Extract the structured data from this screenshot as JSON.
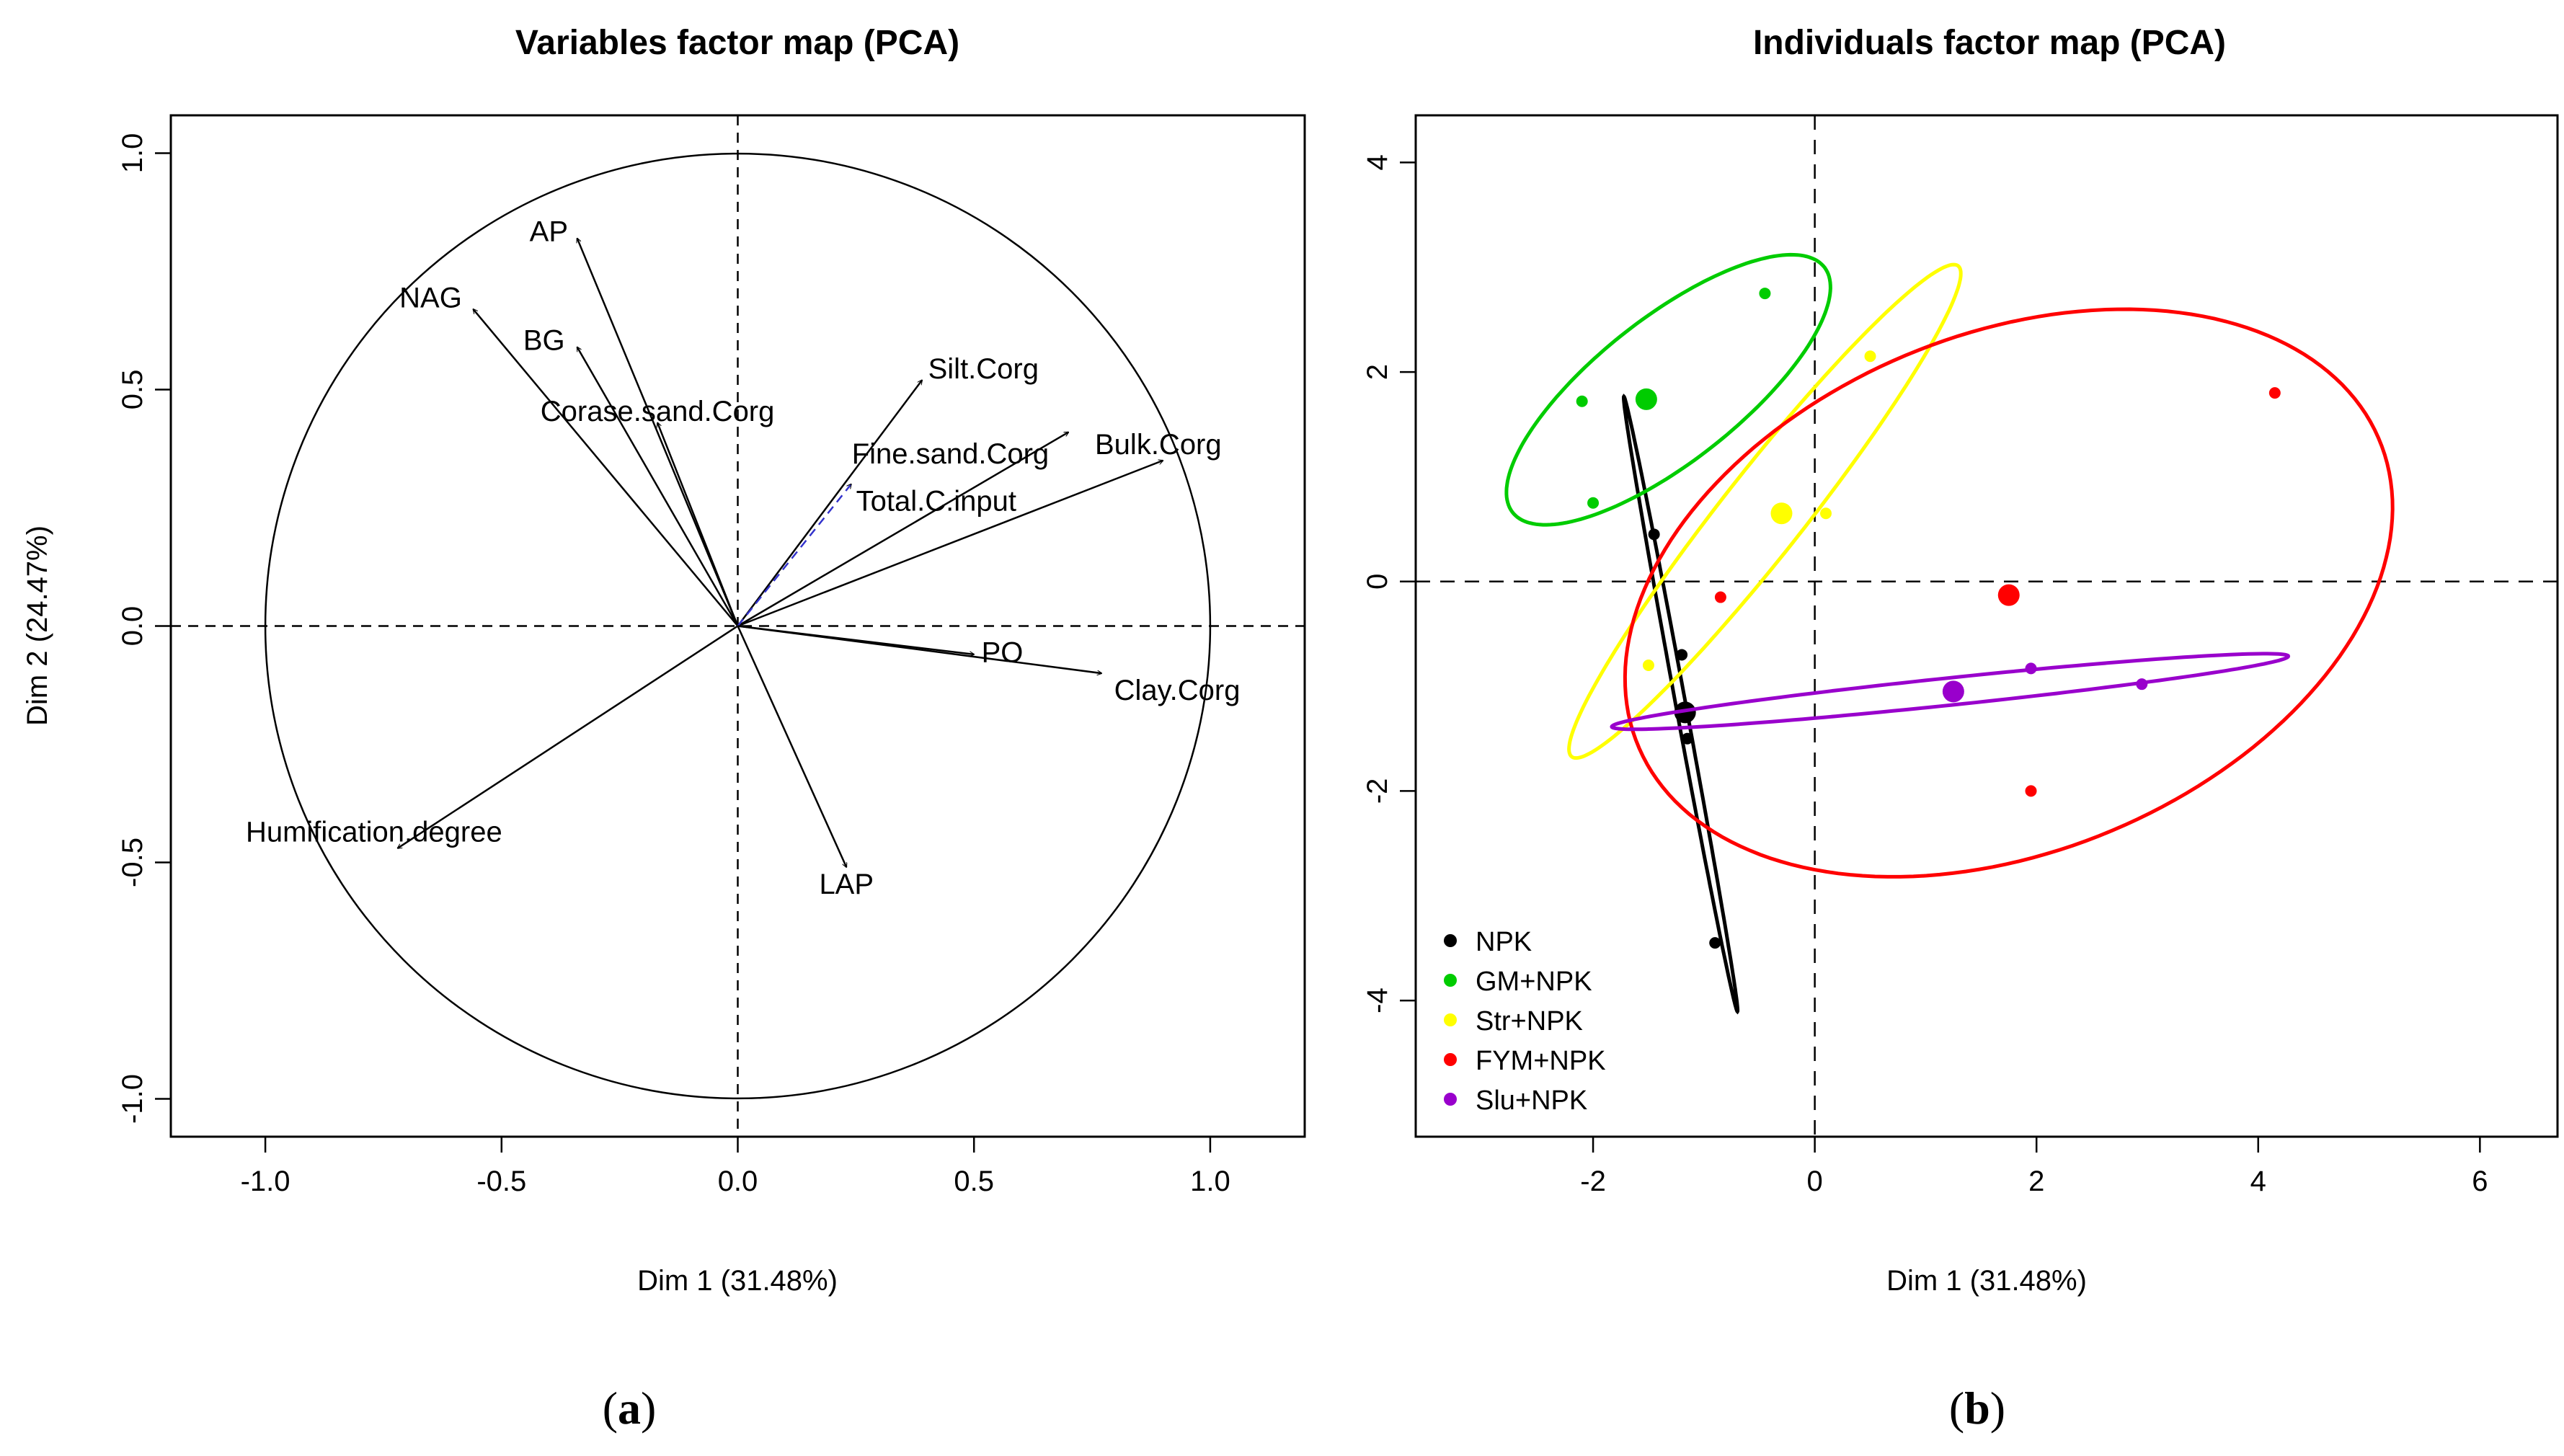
{
  "chart_data": [
    {
      "type": "scatter",
      "panel_label": {
        "open": "(",
        "letter": "a",
        "close": ")"
      },
      "title": "Variables factor map (PCA)",
      "xlabel": "Dim 1 (31.48%)",
      "ylabel": "Dim 2 (24.47%)",
      "xlim": [
        -1.2,
        1.2
      ],
      "ylim": [
        -1.08,
        1.08
      ],
      "xticks": [
        -1.0,
        -0.5,
        0.0,
        0.5,
        1.0
      ],
      "xtick_labels": [
        "-1.0",
        "-0.5",
        "0.0",
        "0.5",
        "1.0"
      ],
      "yticks": [
        -1.0,
        -0.5,
        0.0,
        0.5,
        1.0
      ],
      "ytick_labels": [
        "-1.0",
        "-0.5",
        "0.0",
        "0.5",
        "1.0"
      ],
      "correlation_circle_radius": 1.0,
      "arrow_color": "#000000",
      "supplementary_color": "#3333cc",
      "variables": [
        {
          "name": "AP",
          "x": -0.34,
          "y": 0.82,
          "label_x": -0.4,
          "label_y": 0.83,
          "supplementary": false
        },
        {
          "name": "NAG",
          "x": -0.56,
          "y": 0.67,
          "label_x": -0.65,
          "label_y": 0.69,
          "supplementary": false
        },
        {
          "name": "BG",
          "x": -0.34,
          "y": 0.59,
          "label_x": -0.41,
          "label_y": 0.6,
          "supplementary": false
        },
        {
          "name": "Corase.sand.Corg",
          "x": -0.17,
          "y": 0.43,
          "label_x": -0.17,
          "label_y": 0.45,
          "supplementary": false
        },
        {
          "name": "Silt.Corg",
          "x": 0.39,
          "y": 0.52,
          "label_x": 0.52,
          "label_y": 0.54,
          "supplementary": false
        },
        {
          "name": "Fine.sand.Corg",
          "x": 0.7,
          "y": 0.41,
          "label_x": 0.45,
          "label_y": 0.36,
          "supplementary": false
        },
        {
          "name": "Bulk.Corg",
          "x": 0.9,
          "y": 0.35,
          "label_x": 0.89,
          "label_y": 0.38,
          "supplementary": false
        },
        {
          "name": "Total.C.input",
          "x": 0.24,
          "y": 0.3,
          "label_x": 0.42,
          "label_y": 0.26,
          "supplementary": true
        },
        {
          "name": "PO",
          "x": 0.5,
          "y": -0.06,
          "label_x": 0.56,
          "label_y": -0.06,
          "supplementary": false
        },
        {
          "name": "Clay.Corg",
          "x": 0.77,
          "y": -0.1,
          "label_x": 0.93,
          "label_y": -0.14,
          "supplementary": false
        },
        {
          "name": "LAP",
          "x": 0.23,
          "y": -0.51,
          "label_x": 0.23,
          "label_y": -0.55,
          "supplementary": false
        },
        {
          "name": "Humification.degree",
          "x": -0.72,
          "y": -0.47,
          "label_x": -0.77,
          "label_y": -0.44,
          "supplementary": false
        }
      ]
    },
    {
      "type": "scatter",
      "panel_label": {
        "open": "(",
        "letter": "b",
        "close": ")"
      },
      "title": "Individuals factor map (PCA)",
      "xlabel": "Dim 1 (31.48%)",
      "xlim": [
        -3.6,
        6.7
      ],
      "ylim": [
        -5.3,
        4.45
      ],
      "xticks": [
        -2,
        0,
        2,
        4,
        6
      ],
      "xtick_labels": [
        "-2",
        "0",
        "2",
        "4",
        "6"
      ],
      "yticks": [
        -4,
        -2,
        0,
        2,
        4
      ],
      "ytick_labels": [
        "-4",
        "-2",
        "0",
        "2",
        "4"
      ],
      "groups": [
        {
          "name": "NPK",
          "color": "#000000",
          "points": [
            [
              -1.45,
              0.45
            ],
            [
              -1.2,
              -0.7
            ],
            [
              -1.15,
              -1.5
            ],
            [
              -0.9,
              -3.45
            ]
          ],
          "centroid": [
            -1.17,
            -1.25
          ],
          "ellipse": {
            "cx": -1.21,
            "cy": -1.17,
            "rx": 2.98,
            "ry": 0.045,
            "angle_deg": -80.1
          }
        },
        {
          "name": "GM+NPK",
          "color": "#00cc00",
          "points": [
            [
              -2.1,
              1.72
            ],
            [
              -2.0,
              0.75
            ],
            [
              -0.45,
              2.75
            ]
          ],
          "centroid": [
            -1.52,
            1.74
          ],
          "ellipse": {
            "cx": -1.32,
            "cy": 1.83,
            "rx": 1.83,
            "ry": 0.67,
            "angle_deg": 40.3
          }
        },
        {
          "name": "Str+NPK",
          "color": "#ffff00",
          "points": [
            [
              -1.5,
              -0.8
            ],
            [
              0.1,
              0.65
            ],
            [
              0.5,
              2.15
            ]
          ],
          "centroid": [
            -0.3,
            0.65
          ],
          "ellipse": {
            "cx": -0.45,
            "cy": 0.67,
            "rx": 2.92,
            "ry": 0.38,
            "angle_deg": 53.4
          }
        },
        {
          "name": "FYM+NPK",
          "color": "#ff0000",
          "points": [
            [
              -0.85,
              -0.15
            ],
            [
              1.95,
              -2.0
            ],
            [
              4.15,
              1.8
            ]
          ],
          "centroid": [
            1.75,
            -0.13
          ],
          "ellipse": {
            "cx": 1.75,
            "cy": -0.11,
            "rx": 3.65,
            "ry": 2.45,
            "angle_deg": 25.3
          }
        },
        {
          "name": "Slu+NPK",
          "color": "#9900cc",
          "points": [
            [
              1.95,
              -0.83
            ],
            [
              2.95,
              -0.98
            ]
          ],
          "centroid": [
            1.25,
            -1.05
          ],
          "ellipse": {
            "cx": 1.22,
            "cy": -1.05,
            "rx": 3.07,
            "ry": 0.13,
            "angle_deg": 6.3
          }
        }
      ]
    }
  ]
}
